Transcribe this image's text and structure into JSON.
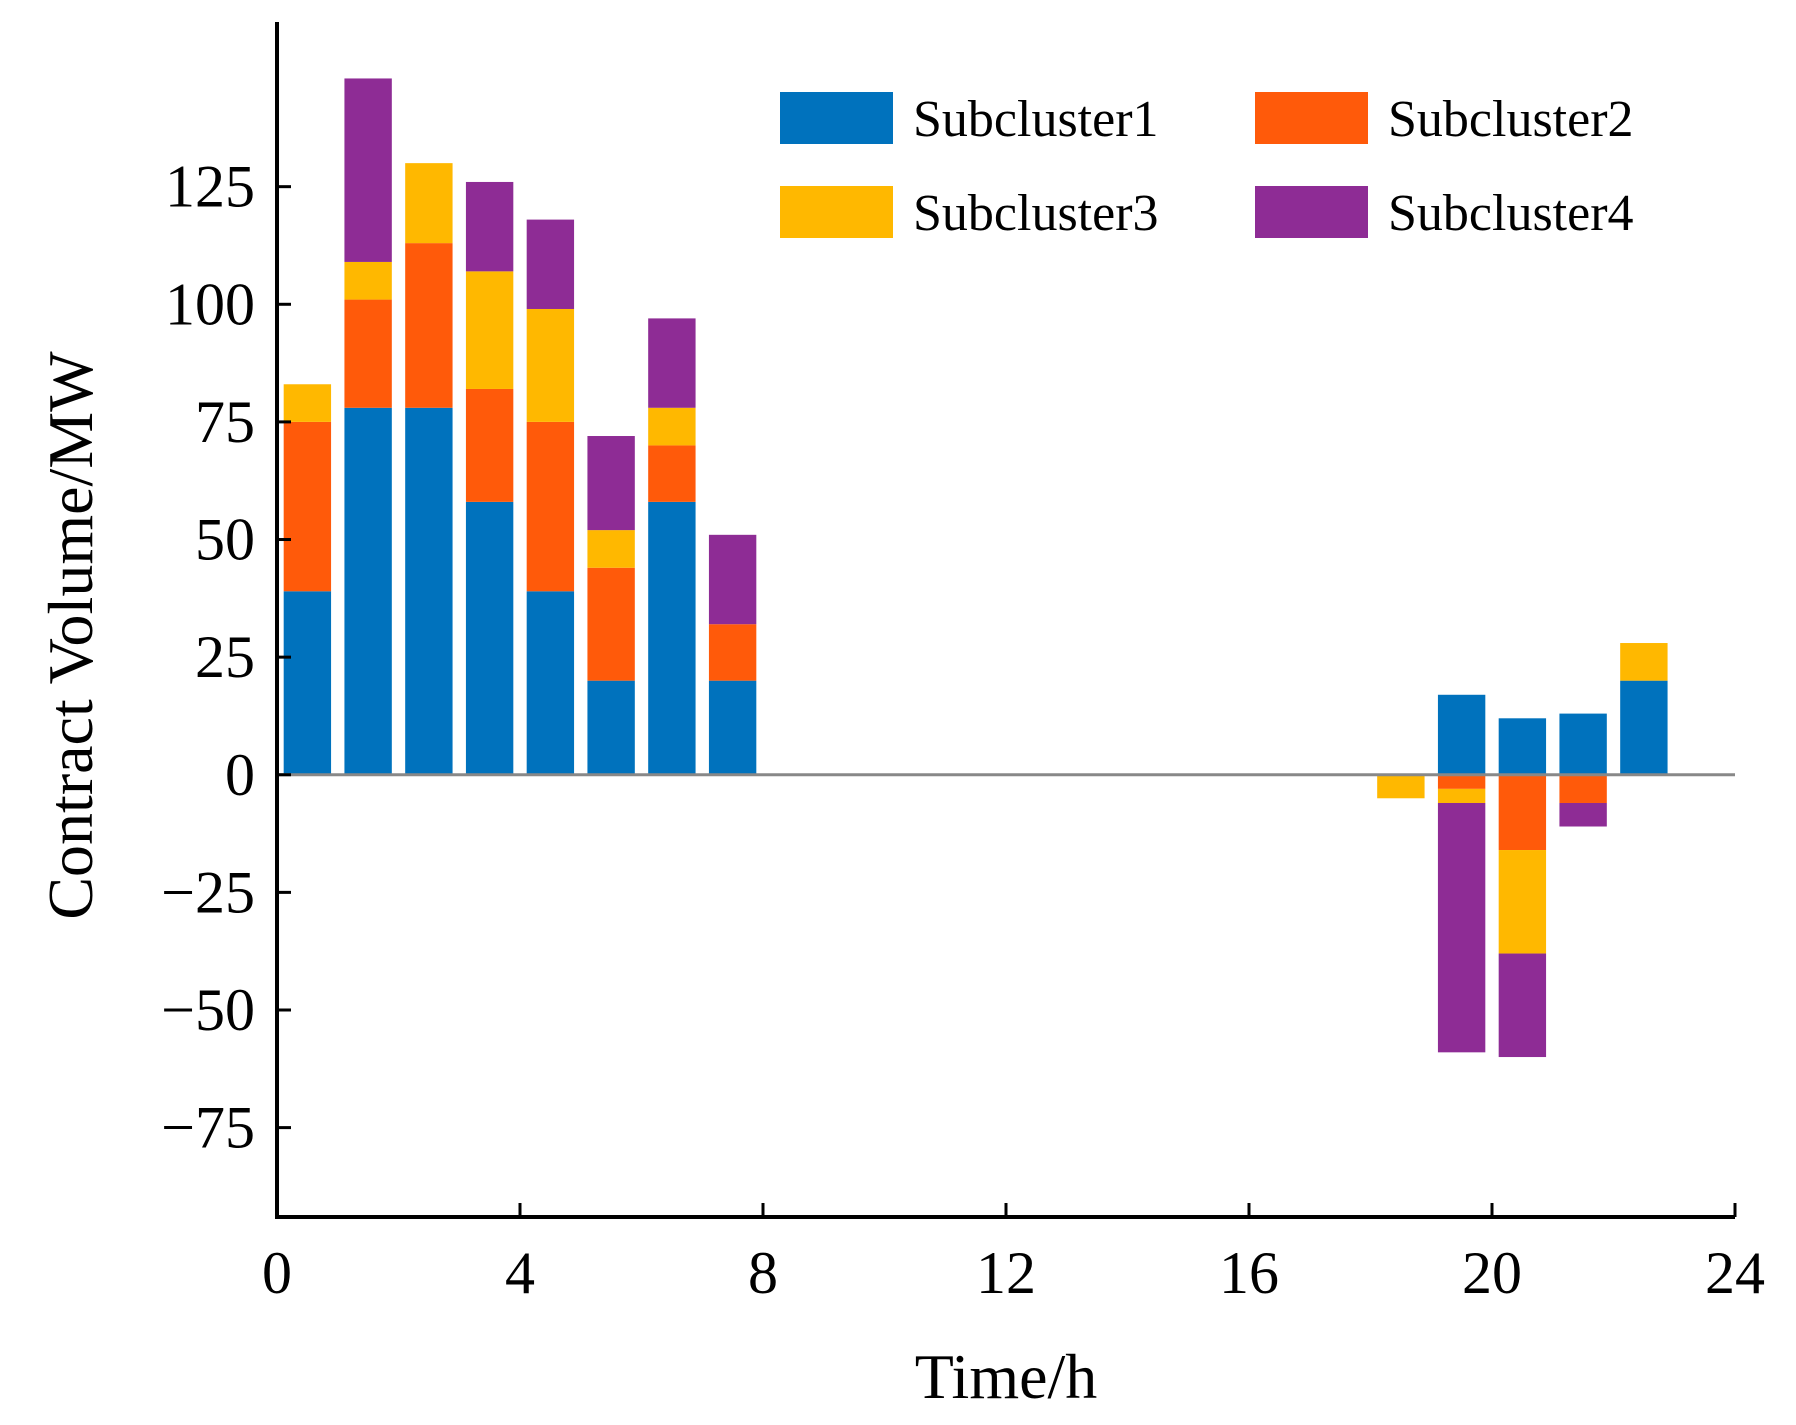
{
  "chart_data": {
    "type": "bar",
    "stacked": true,
    "title": "",
    "xlabel": "Time/h",
    "ylabel": "Contract Volume/MW",
    "xlim": [
      0,
      24
    ],
    "ylim": [
      -94,
      160
    ],
    "xticks": [
      0,
      4,
      8,
      12,
      16,
      20,
      24
    ],
    "yticks": [
      -75,
      -50,
      -25,
      0,
      25,
      50,
      75,
      100,
      125
    ],
    "ytick_labels": [
      "−75",
      "−50",
      "−25",
      "0",
      "25",
      "50",
      "75",
      "100",
      "125"
    ],
    "grid": false,
    "legend_position": "top-right",
    "categories": [
      1,
      2,
      3,
      4,
      5,
      6,
      7,
      8,
      9,
      10,
      11,
      12,
      13,
      14,
      15,
      16,
      17,
      18,
      19,
      20,
      21,
      22,
      23,
      24
    ],
    "series": [
      {
        "name": "Subcluster1",
        "color": "#0072BD",
        "values": [
          39,
          78,
          78,
          58,
          39,
          20,
          58,
          20,
          0,
          0,
          0,
          0,
          0,
          0,
          0,
          0,
          0,
          0,
          0,
          17,
          12,
          13,
          20,
          0
        ]
      },
      {
        "name": "Subcluster2",
        "color": "#FF5A0A",
        "values": [
          36,
          23,
          35,
          24,
          36,
          24,
          12,
          12,
          0,
          0,
          0,
          0,
          0,
          0,
          0,
          0,
          0,
          0,
          0,
          -3,
          -16,
          -6,
          0,
          0
        ]
      },
      {
        "name": "Subcluster3",
        "color": "#FFB800",
        "values": [
          8,
          8,
          17,
          25,
          24,
          8,
          8,
          0,
          0,
          0,
          0,
          0,
          0,
          0,
          0,
          0,
          0,
          0,
          -5,
          -3,
          -22,
          0,
          8,
          0
        ]
      },
      {
        "name": "Subcluster4",
        "color": "#8E2C95",
        "values": [
          0,
          39,
          0,
          19,
          19,
          20,
          19,
          19,
          0,
          0,
          0,
          0,
          0,
          0,
          0,
          0,
          0,
          0,
          0,
          -53,
          -22,
          -5,
          0,
          0
        ]
      }
    ]
  }
}
